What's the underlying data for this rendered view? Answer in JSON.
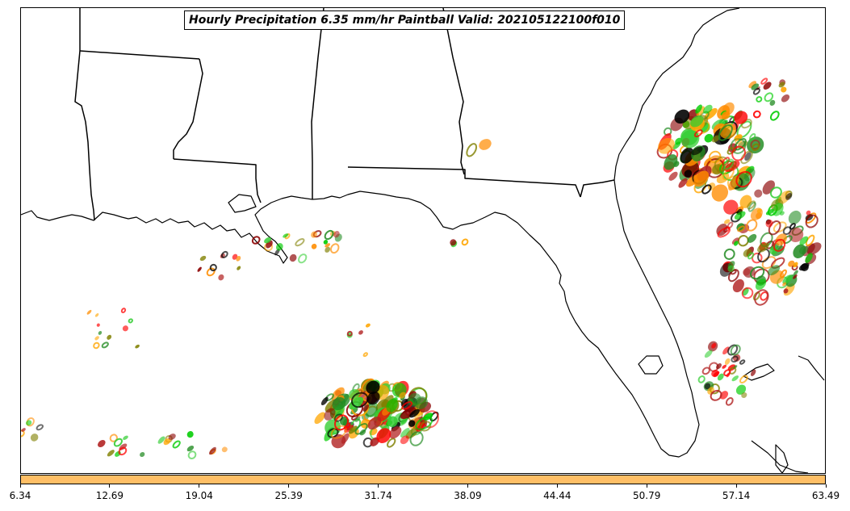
{
  "title": "Hourly Precipitation 6.35 mm/hr Paintball Valid: 202105122100f010",
  "colors": {
    "coastline": "#000000",
    "colorbar_fill": "#ffbf66",
    "member_palette": [
      "#ff0000",
      "#ff8c00",
      "#00cc00",
      "#8b0000",
      "#808000",
      "#000000",
      "#228b22",
      "#ffa500",
      "#32cd32",
      "#b22222"
    ]
  },
  "colorbar": {
    "ticks": [
      "6.34",
      "12.69",
      "19.04",
      "25.39",
      "31.74",
      "38.09",
      "44.44",
      "50.79",
      "57.14",
      "63.49"
    ]
  },
  "map": {
    "projection": "regional",
    "features": [
      "state-borders",
      "coastlines",
      "precipitation-paintball"
    ]
  }
}
